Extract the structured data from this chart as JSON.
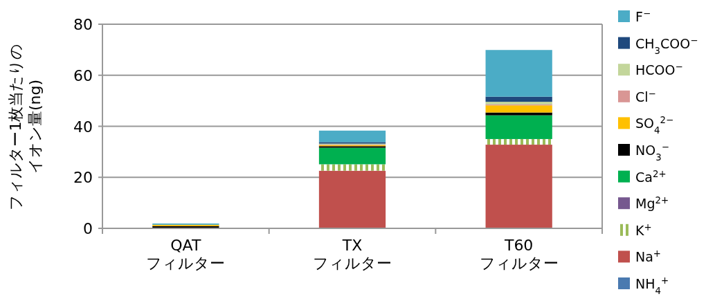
{
  "chart_data": {
    "type": "bar",
    "stacked": true,
    "ylabel": "フィルター1枚当たりのイオン量(ng)",
    "categories": [
      "QAT フィルター",
      "TX フィルター",
      "T60 フィルター"
    ],
    "ylim": [
      0,
      80
    ],
    "yticks": [
      0,
      20,
      40,
      60,
      80
    ],
    "grid": "y",
    "legend": "right",
    "series": [
      {
        "name": "NH$_{4}$$^{+}$",
        "color": "#4a7ab0",
        "values": [
          0,
          0,
          0
        ]
      },
      {
        "name": "Na$^{+}$",
        "color": "#c0504d",
        "values": [
          0,
          22.6,
          32.8
        ]
      },
      {
        "name": "K$^{+}$",
        "color": "#9bbb59",
        "values": [
          0,
          2.5,
          2.2
        ]
      },
      {
        "name": "Mg$^{2+}$",
        "color": "#76588f",
        "values": [
          0,
          0,
          0
        ]
      },
      {
        "name": "Ca$^{2+}$",
        "color": "#00b050",
        "values": [
          0,
          6.5,
          9.3
        ]
      },
      {
        "name": "NO$_{3}$$^{−}$",
        "color": "#000000",
        "values": [
          0.9,
          0.6,
          1.1
        ]
      },
      {
        "name": "SO$_{4}$$^{2−}$",
        "color": "#ffc000",
        "values": [
          0.5,
          0.4,
          2.8
        ]
      },
      {
        "name": "Cl$^{−}$",
        "color": "#d99694",
        "values": [
          0,
          0.2,
          0.4
        ]
      },
      {
        "name": "HCOO$^{−}$",
        "color": "#c3d69b",
        "values": [
          0,
          0.4,
          1.0
        ]
      },
      {
        "name": "CH$_{3}$COO$^{−}$",
        "color": "#1f497d",
        "values": [
          0,
          0.6,
          2.0
        ]
      },
      {
        "name": "F$^{−}$",
        "color": "#4bacc6",
        "values": [
          0.5,
          4.5,
          18.3
        ]
      }
    ]
  }
}
